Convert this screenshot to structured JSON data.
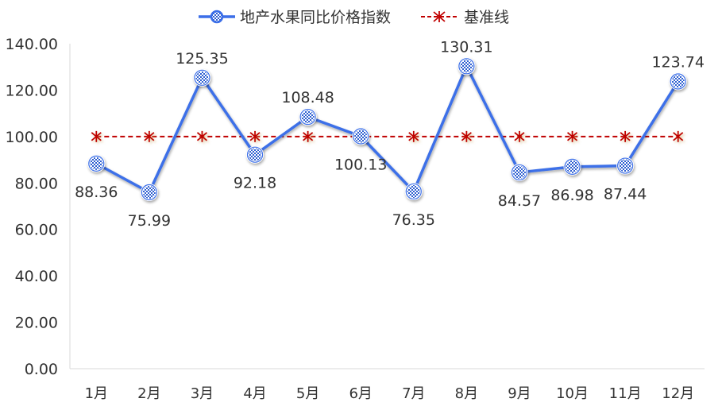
{
  "chart_data": {
    "type": "line",
    "title": "",
    "xlabel": "",
    "ylabel": "",
    "categories": [
      "1月",
      "2月",
      "3月",
      "4月",
      "5月",
      "6月",
      "7月",
      "8月",
      "9月",
      "10月",
      "11月",
      "12月"
    ],
    "series": [
      {
        "name": "地产水果同比价格指数",
        "color": "#3c6fe8",
        "marker": "checkered-circle",
        "values": [
          88.36,
          75.99,
          125.35,
          92.18,
          108.48,
          100.13,
          76.35,
          130.31,
          84.57,
          86.98,
          87.44,
          123.74
        ],
        "labels": [
          "88.36",
          "75.99",
          "125.35",
          "92.18",
          "108.48",
          "100.13",
          "76.35",
          "130.31",
          "84.57",
          "86.98",
          "87.44",
          "123.74"
        ]
      },
      {
        "name": "基准线",
        "color": "#c00000",
        "marker": "asterisk",
        "line_style": "dashed",
        "values": [
          100,
          100,
          100,
          100,
          100,
          100,
          100,
          100,
          100,
          100,
          100,
          100
        ]
      }
    ],
    "ylim": [
      0,
      140
    ],
    "yticks": [
      "0.00",
      "20.00",
      "40.00",
      "60.00",
      "80.00",
      "100.00",
      "120.00",
      "140.00"
    ],
    "grid": false,
    "legend": "top-center"
  }
}
